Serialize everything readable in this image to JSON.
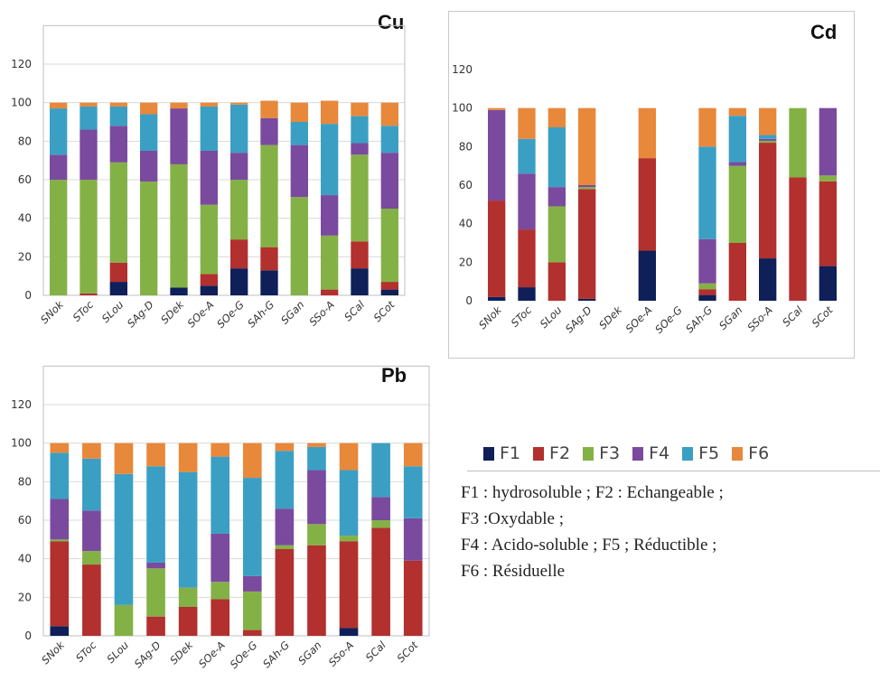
{
  "chart_data": [
    {
      "type": "bar",
      "stacked": true,
      "title": "Cu",
      "categories": [
        "SNok",
        "SToc",
        "SLou",
        "SAg-D",
        "SDek",
        "SOe-A",
        "SOe-G",
        "SAh-G",
        "SGan",
        "SSo-A",
        "SCal",
        "SCot"
      ],
      "ylim": [
        0,
        120
      ],
      "yticks": [
        "0",
        "20",
        "40",
        "60",
        "80",
        "100",
        "120"
      ],
      "grid": true,
      "series": [
        {
          "name": "F1",
          "values": [
            0,
            0,
            7,
            0,
            4,
            5,
            14,
            13,
            0,
            0,
            14,
            3
          ]
        },
        {
          "name": "F2",
          "values": [
            0,
            1,
            10,
            0,
            0,
            6,
            15,
            12,
            0,
            3,
            14,
            4
          ]
        },
        {
          "name": "F3",
          "values": [
            60,
            59,
            52,
            59,
            64,
            36,
            31,
            53,
            51,
            28,
            45,
            38
          ]
        },
        {
          "name": "F4",
          "values": [
            13,
            26,
            19,
            16,
            29,
            28,
            14,
            14,
            27,
            21,
            6,
            29
          ]
        },
        {
          "name": "F5",
          "values": [
            24,
            12,
            10,
            19,
            0,
            23,
            25,
            0,
            12,
            37,
            14,
            14
          ]
        },
        {
          "name": "F6",
          "values": [
            3,
            2,
            2,
            6,
            3,
            2,
            1,
            9,
            10,
            12,
            7,
            12
          ]
        }
      ]
    },
    {
      "type": "bar",
      "stacked": true,
      "title": "Cd",
      "categories": [
        "SNok",
        "SToc",
        "SLou",
        "SAg-D",
        "SDek",
        "SOe-A",
        "SOe-G",
        "SAh-G",
        "SGan",
        "SSo-A",
        "SCal",
        "SCot"
      ],
      "ylim": [
        0,
        120
      ],
      "yticks": [
        "0",
        "20",
        "40",
        "60",
        "80",
        "100",
        "120"
      ],
      "grid": false,
      "series": [
        {
          "name": "F1",
          "values": [
            2,
            7,
            0,
            1,
            0,
            26,
            0,
            3,
            0,
            22,
            0,
            18
          ]
        },
        {
          "name": "F2",
          "values": [
            50,
            30,
            20,
            57,
            0,
            48,
            0,
            3,
            30,
            60,
            64,
            44
          ]
        },
        {
          "name": "F3",
          "values": [
            0,
            0,
            29,
            1,
            0,
            0,
            0,
            3,
            40,
            1,
            36,
            3
          ]
        },
        {
          "name": "F4",
          "values": [
            47,
            29,
            10,
            1,
            0,
            0,
            0,
            23,
            2,
            1,
            0,
            35
          ]
        },
        {
          "name": "F5",
          "values": [
            0,
            18,
            31,
            0,
            0,
            0,
            0,
            48,
            24,
            2,
            0,
            0
          ]
        },
        {
          "name": "F6",
          "values": [
            1,
            16,
            10,
            40,
            0,
            26,
            0,
            20,
            4,
            14,
            0,
            0
          ]
        }
      ]
    },
    {
      "type": "bar",
      "stacked": true,
      "title": "Pb",
      "categories": [
        "SNok",
        "SToc",
        "SLou",
        "SAg-D",
        "SDek",
        "SOe-A",
        "SOe-G",
        "SAh-G",
        "SGan",
        "SSo-A",
        "SCal",
        "SCot"
      ],
      "ylim": [
        0,
        120
      ],
      "yticks": [
        "0",
        "20",
        "40",
        "60",
        "80",
        "100",
        "120"
      ],
      "grid": true,
      "series": [
        {
          "name": "F1",
          "values": [
            5,
            0,
            0,
            0,
            0,
            0,
            0,
            0,
            0,
            4,
            0,
            0
          ]
        },
        {
          "name": "F2",
          "values": [
            44,
            37,
            0,
            10,
            15,
            19,
            3,
            45,
            47,
            45,
            56,
            39
          ]
        },
        {
          "name": "F3",
          "values": [
            1,
            7,
            16,
            25,
            10,
            9,
            20,
            2,
            11,
            3,
            4,
            0
          ]
        },
        {
          "name": "F4",
          "values": [
            21,
            21,
            0,
            3,
            0,
            25,
            8,
            19,
            28,
            0,
            12,
            22
          ]
        },
        {
          "name": "F5",
          "values": [
            24,
            27,
            68,
            50,
            60,
            40,
            51,
            30,
            12,
            34,
            28,
            27
          ]
        },
        {
          "name": "F6",
          "values": [
            5,
            8,
            16,
            12,
            15,
            7,
            18,
            4,
            2,
            14,
            0,
            12
          ]
        }
      ]
    }
  ],
  "colors": {
    "F1": "#0f1f58",
    "F2": "#b2302e",
    "F3": "#84b146",
    "F4": "#7a4a9e",
    "F5": "#3b9fc4",
    "F6": "#e8883b",
    "grid": "#d9d9d9",
    "axis": "#bfbfbf"
  },
  "legend": {
    "items": [
      {
        "key": "F1",
        "label": "F1"
      },
      {
        "key": "F2",
        "label": "F2"
      },
      {
        "key": "F3",
        "label": "F3"
      },
      {
        "key": "F4",
        "label": "F4"
      },
      {
        "key": "F5",
        "label": "F5"
      },
      {
        "key": "F6",
        "label": "F6"
      }
    ]
  },
  "notes": {
    "line1": "F1 : hydrosoluble ; F2 : Echangeable ;",
    "line2": "F3 :Oxydable ;",
    "line3": "F4 : Acido-soluble ; F5 ; Réductible ;",
    "line4": "F6 : Résiduelle"
  }
}
